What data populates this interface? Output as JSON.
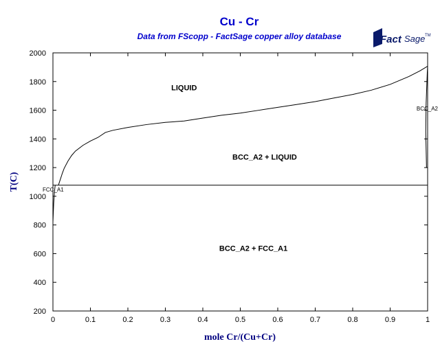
{
  "chart_data": {
    "type": "line",
    "title": "Cu - Cr",
    "subtitle": "Data from FScopp - FactSage copper alloy database",
    "xlabel": "mole Cr/(Cu+Cr)",
    "ylabel": "T(C)",
    "xlim": [
      0,
      1
    ],
    "ylim": [
      200,
      2000
    ],
    "xticks": [
      "0",
      "0.1",
      "0.2",
      "0.3",
      "0.4",
      "0.5",
      "0.6",
      "0.7",
      "0.8",
      "0.9",
      "1"
    ],
    "yticks": [
      "200",
      "400",
      "600",
      "800",
      "1000",
      "1200",
      "1400",
      "1600",
      "1800",
      "2000"
    ],
    "grid": false,
    "series": [
      {
        "values": [
          [
            0.015,
            1080
          ],
          [
            0.02,
            1120
          ],
          [
            0.025,
            1160
          ],
          [
            0.03,
            1195
          ],
          [
            0.04,
            1245
          ],
          [
            0.05,
            1285
          ],
          [
            0.06,
            1315
          ],
          [
            0.08,
            1355
          ],
          [
            0.1,
            1385
          ],
          [
            0.12,
            1410
          ],
          [
            0.14,
            1445
          ],
          [
            0.16,
            1460
          ],
          [
            0.2,
            1480
          ],
          [
            0.25,
            1500
          ],
          [
            0.3,
            1515
          ],
          [
            0.35,
            1525
          ],
          [
            0.4,
            1545
          ],
          [
            0.45,
            1565
          ],
          [
            0.5,
            1580
          ],
          [
            0.55,
            1600
          ],
          [
            0.6,
            1620
          ],
          [
            0.65,
            1640
          ],
          [
            0.7,
            1660
          ],
          [
            0.75,
            1685
          ],
          [
            0.8,
            1710
          ],
          [
            0.85,
            1740
          ],
          [
            0.9,
            1780
          ],
          [
            0.95,
            1835
          ],
          [
            0.98,
            1875
          ],
          [
            1.0,
            1907
          ]
        ]
      },
      {
        "values": [
          [
            0.0,
            1077
          ],
          [
            1.0,
            1077
          ]
        ]
      },
      {
        "values": [
          [
            0.0,
            820
          ],
          [
            0.002,
            950
          ],
          [
            0.004,
            1030
          ],
          [
            0.006,
            1077
          ]
        ]
      },
      {
        "values": [
          [
            0.997,
            1200
          ],
          [
            0.995,
            1450
          ],
          [
            0.996,
            1650
          ],
          [
            0.999,
            1860
          ],
          [
            1.0,
            1907
          ]
        ]
      }
    ],
    "annotations": [
      {
        "text": "LIQUID",
        "x": 0.35,
        "y": 1740
      },
      {
        "text": "BCC_A2 + LIQUID",
        "x": 0.565,
        "y": 1255
      },
      {
        "text": "BCC_A2 + FCC_A1",
        "x": 0.535,
        "y": 620
      },
      {
        "text": "FCC_A1",
        "x": 0.0,
        "y": 1030
      },
      {
        "text": "BCC_A2",
        "x": 0.985,
        "y": 1610
      }
    ]
  },
  "logo": {
    "main": "Fact",
    "second": "Sage",
    "tm": "TM"
  }
}
